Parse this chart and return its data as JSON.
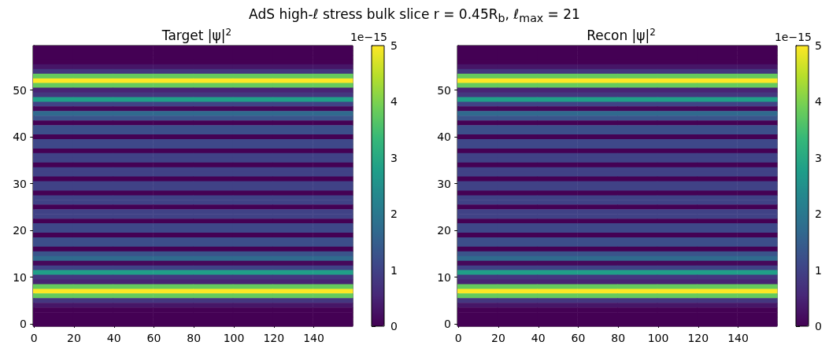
{
  "chart_data": [
    {
      "type": "heatmap",
      "title": "AdS high-ℓ stress bulk slice r = 0.45R$_{b}$, ℓ$_{max}$ = 21",
      "subtitle": "Target |ψ|$^{2}$",
      "clabel": "1e−15",
      "xlim": [
        -0.5,
        159.5
      ],
      "xticks": [
        0,
        20,
        40,
        60,
        80,
        100,
        120,
        140
      ],
      "ylim": [
        -0.5,
        59.5
      ],
      "yticks": [
        0,
        10,
        20,
        30,
        40,
        50
      ],
      "clim": [
        0,
        5
      ],
      "cticks": [
        0,
        1,
        2,
        3,
        4,
        5
      ],
      "cells": [
        [
          0,
          0,
          0,
          0,
          0,
          0,
          0,
          0
        ],
        [
          0,
          0,
          0,
          0,
          0,
          0,
          0,
          0
        ],
        [
          0,
          0,
          0,
          0,
          0,
          0,
          0,
          0
        ],
        [
          0,
          0,
          0,
          0,
          0,
          0,
          0,
          0
        ],
        [
          0.3,
          0.3,
          0.3,
          0.3,
          0.3,
          0.3,
          0.3,
          0.3
        ],
        [
          0.8,
          0.8,
          0.8,
          0.8,
          0.8,
          0.8,
          0.8,
          0.8
        ],
        [
          3.8,
          3.8,
          3.8,
          3.8,
          3.8,
          3.8,
          3.8,
          3.8
        ],
        [
          5,
          5,
          5,
          5,
          5,
          5,
          5,
          5
        ],
        [
          3.8,
          3.8,
          3.8,
          3.8,
          3.8,
          3.8,
          3.8,
          3.8
        ],
        [
          0.5,
          0.5,
          0.5,
          0.5,
          0.5,
          0.5,
          0.5,
          0.5
        ],
        [
          0.8,
          0.8,
          0.8,
          0.8,
          0.8,
          0.8,
          0.8,
          0.8
        ],
        [
          2.8,
          2.8,
          2.8,
          2.8,
          2.8,
          2.8,
          2.8,
          2.8
        ],
        [
          1,
          1,
          1,
          1,
          1,
          1,
          1,
          1
        ],
        [
          0.1,
          0.1,
          0.1,
          0.1,
          0.1,
          0.1,
          0.1,
          0.1
        ],
        [
          1.7,
          1.7,
          1.7,
          1.7,
          1.7,
          1.7,
          1.7,
          1.7
        ],
        [
          1.3,
          1.3,
          1.3,
          1.3,
          1.3,
          1.3,
          1.3,
          1.3
        ],
        [
          0,
          0,
          0,
          0,
          0,
          0,
          0,
          0
        ],
        [
          1.2,
          1.2,
          1.2,
          1.2,
          1.2,
          1.2,
          1.2,
          1.2
        ],
        [
          1.2,
          1.2,
          1.2,
          1.2,
          1.2,
          1.2,
          1.2,
          1.2
        ],
        [
          0,
          0,
          0,
          0,
          0,
          0,
          0,
          0
        ],
        [
          1.1,
          1.1,
          1.1,
          1.1,
          1.1,
          1.1,
          1.1,
          1.1
        ],
        [
          1.1,
          1.1,
          1.1,
          1.1,
          1.1,
          1.1,
          1.1,
          1.1
        ],
        [
          0,
          0,
          0,
          0,
          0,
          0,
          0,
          0
        ],
        [
          1,
          1,
          1,
          1,
          1,
          1,
          1,
          1
        ],
        [
          1,
          1,
          1,
          1,
          1,
          1,
          1,
          1
        ],
        [
          0,
          0,
          0,
          0,
          0,
          0,
          0,
          0
        ],
        [
          1,
          1,
          1,
          1,
          1,
          1,
          1,
          1
        ],
        [
          1,
          1,
          1,
          1,
          1,
          1,
          1,
          1
        ],
        [
          0,
          0,
          0,
          0,
          0,
          0,
          0,
          0
        ],
        [
          1,
          1,
          1,
          1,
          1,
          1,
          1,
          1
        ],
        [
          1,
          1,
          1,
          1,
          1,
          1,
          1,
          1
        ],
        [
          0,
          0,
          0,
          0,
          0,
          0,
          0,
          0
        ],
        [
          1,
          1,
          1,
          1,
          1,
          1,
          1,
          1
        ],
        [
          1,
          1,
          1,
          1,
          1,
          1,
          1,
          1
        ],
        [
          0,
          0,
          0,
          0,
          0,
          0,
          0,
          0
        ],
        [
          1,
          1,
          1,
          1,
          1,
          1,
          1,
          1
        ],
        [
          1,
          1,
          1,
          1,
          1,
          1,
          1,
          1
        ],
        [
          0,
          0,
          0,
          0,
          0,
          0,
          0,
          0
        ],
        [
          1.1,
          1.1,
          1.1,
          1.1,
          1.1,
          1.1,
          1.1,
          1.1
        ],
        [
          1.1,
          1.1,
          1.1,
          1.1,
          1.1,
          1.1,
          1.1,
          1.1
        ],
        [
          0,
          0,
          0,
          0,
          0,
          0,
          0,
          0
        ],
        [
          1.2,
          1.2,
          1.2,
          1.2,
          1.2,
          1.2,
          1.2,
          1.2
        ],
        [
          1.2,
          1.2,
          1.2,
          1.2,
          1.2,
          1.2,
          1.2,
          1.2
        ],
        [
          0,
          0,
          0,
          0,
          0,
          0,
          0,
          0
        ],
        [
          1.3,
          1.3,
          1.3,
          1.3,
          1.3,
          1.3,
          1.3,
          1.3
        ],
        [
          1.7,
          1.7,
          1.7,
          1.7,
          1.7,
          1.7,
          1.7,
          1.7
        ],
        [
          0.1,
          0.1,
          0.1,
          0.1,
          0.1,
          0.1,
          0.1,
          0.1
        ],
        [
          1,
          1,
          1,
          1,
          1,
          1,
          1,
          1
        ],
        [
          2.8,
          2.8,
          2.8,
          2.8,
          2.8,
          2.8,
          2.8,
          2.8
        ],
        [
          0.8,
          0.8,
          0.8,
          0.8,
          0.8,
          0.8,
          0.8,
          0.8
        ],
        [
          0.5,
          0.5,
          0.5,
          0.5,
          0.5,
          0.5,
          0.5,
          0.5
        ],
        [
          3.8,
          3.8,
          3.8,
          3.8,
          3.8,
          3.8,
          3.8,
          3.8
        ],
        [
          5,
          5,
          5,
          5,
          5,
          5,
          5,
          5
        ],
        [
          3.8,
          3.8,
          3.8,
          3.8,
          3.8,
          3.8,
          3.8,
          3.8
        ],
        [
          0.8,
          0.8,
          0.8,
          0.8,
          0.8,
          0.8,
          0.8,
          0.8
        ],
        [
          0.3,
          0.3,
          0.3,
          0.3,
          0.3,
          0.3,
          0.3,
          0.3
        ],
        [
          0,
          0,
          0,
          0,
          0,
          0,
          0,
          0
        ],
        [
          0,
          0,
          0,
          0,
          0,
          0,
          0,
          0
        ],
        [
          0,
          0,
          0,
          0,
          0,
          0,
          0,
          0
        ],
        [
          0,
          0,
          0,
          0,
          0,
          0,
          0,
          0
        ]
      ]
    },
    {
      "type": "heatmap",
      "subtitle": "Recon |ψ|$^{2}$",
      "clabel": "1e−15",
      "xlim": [
        -0.5,
        159.5
      ],
      "xticks": [
        0,
        20,
        40,
        60,
        80,
        100,
        120,
        140
      ],
      "ylim": [
        -0.5,
        59.5
      ],
      "yticks": [
        0,
        10,
        20,
        30,
        40,
        50
      ],
      "clim": [
        0,
        5
      ],
      "cticks": [
        0,
        1,
        2,
        3,
        4,
        5
      ],
      "cells": [
        [
          0,
          0,
          0,
          0,
          0,
          0,
          0,
          0
        ],
        [
          0,
          0,
          0,
          0,
          0,
          0,
          0,
          0
        ],
        [
          0,
          0,
          0,
          0,
          0,
          0,
          0,
          0
        ],
        [
          0,
          0,
          0,
          0,
          0,
          0,
          0,
          0
        ],
        [
          0.3,
          0.3,
          0.3,
          0.3,
          0.3,
          0.3,
          0.3,
          0.3
        ],
        [
          0.8,
          0.8,
          0.8,
          0.8,
          0.8,
          0.8,
          0.8,
          0.8
        ],
        [
          3.8,
          3.8,
          3.8,
          3.8,
          3.8,
          3.8,
          3.8,
          3.8
        ],
        [
          5,
          5,
          5,
          5,
          5,
          5,
          5,
          5
        ],
        [
          3.8,
          3.8,
          3.8,
          3.8,
          3.8,
          3.8,
          3.8,
          3.8
        ],
        [
          0.5,
          0.5,
          0.5,
          0.5,
          0.5,
          0.5,
          0.5,
          0.5
        ],
        [
          0.8,
          0.8,
          0.8,
          0.8,
          0.8,
          0.8,
          0.8,
          0.8
        ],
        [
          2.8,
          2.8,
          2.8,
          2.8,
          2.8,
          2.8,
          2.8,
          2.8
        ],
        [
          1,
          1,
          1,
          1,
          1,
          1,
          1,
          1
        ],
        [
          0.1,
          0.1,
          0.1,
          0.1,
          0.1,
          0.1,
          0.1,
          0.1
        ],
        [
          1.7,
          1.7,
          1.7,
          1.7,
          1.7,
          1.7,
          1.7,
          1.7
        ],
        [
          1.3,
          1.3,
          1.3,
          1.3,
          1.3,
          1.3,
          1.3,
          1.3
        ],
        [
          0,
          0,
          0,
          0,
          0,
          0,
          0,
          0
        ],
        [
          1.2,
          1.2,
          1.2,
          1.2,
          1.2,
          1.2,
          1.2,
          1.2
        ],
        [
          1.2,
          1.2,
          1.2,
          1.2,
          1.2,
          1.2,
          1.2,
          1.2
        ],
        [
          0,
          0,
          0,
          0,
          0,
          0,
          0,
          0
        ],
        [
          1.1,
          1.1,
          1.1,
          1.1,
          1.1,
          1.1,
          1.1,
          1.1
        ],
        [
          1.1,
          1.1,
          1.1,
          1.1,
          1.1,
          1.1,
          1.1,
          1.1
        ],
        [
          0,
          0,
          0,
          0,
          0,
          0,
          0,
          0
        ],
        [
          1,
          1,
          1,
          1,
          1,
          1,
          1,
          1
        ],
        [
          1,
          1,
          1,
          1,
          1,
          1,
          1,
          1
        ],
        [
          0,
          0,
          0,
          0,
          0,
          0,
          0,
          0
        ],
        [
          1,
          1,
          1,
          1,
          1,
          1,
          1,
          1
        ],
        [
          1,
          1,
          1,
          1,
          1,
          1,
          1,
          1
        ],
        [
          0,
          0,
          0,
          0,
          0,
          0,
          0,
          0
        ],
        [
          1,
          1,
          1,
          1,
          1,
          1,
          1,
          1
        ],
        [
          1,
          1,
          1,
          1,
          1,
          1,
          1,
          1
        ],
        [
          0,
          0,
          0,
          0,
          0,
          0,
          0,
          0
        ],
        [
          1,
          1,
          1,
          1,
          1,
          1,
          1,
          1
        ],
        [
          1,
          1,
          1,
          1,
          1,
          1,
          1,
          1
        ],
        [
          0,
          0,
          0,
          0,
          0,
          0,
          0,
          0
        ],
        [
          1,
          1,
          1,
          1,
          1,
          1,
          1,
          1
        ],
        [
          1,
          1,
          1,
          1,
          1,
          1,
          1,
          1
        ],
        [
          0,
          0,
          0,
          0,
          0,
          0,
          0,
          0
        ],
        [
          1.1,
          1.1,
          1.1,
          1.1,
          1.1,
          1.1,
          1.1,
          1.1
        ],
        [
          1.1,
          1.1,
          1.1,
          1.1,
          1.1,
          1.1,
          1.1,
          1.1
        ],
        [
          0,
          0,
          0,
          0,
          0,
          0,
          0,
          0
        ],
        [
          1.2,
          1.2,
          1.2,
          1.2,
          1.2,
          1.2,
          1.2,
          1.2
        ],
        [
          1.2,
          1.2,
          1.2,
          1.2,
          1.2,
          1.2,
          1.2,
          1.2
        ],
        [
          0,
          0,
          0,
          0,
          0,
          0,
          0,
          0
        ],
        [
          1.3,
          1.3,
          1.3,
          1.3,
          1.3,
          1.3,
          1.3,
          1.3
        ],
        [
          1.7,
          1.7,
          1.7,
          1.7,
          1.7,
          1.7,
          1.7,
          1.7
        ],
        [
          0.1,
          0.1,
          0.1,
          0.1,
          0.1,
          0.1,
          0.1,
          0.1
        ],
        [
          1,
          1,
          1,
          1,
          1,
          1,
          1,
          1
        ],
        [
          2.8,
          2.8,
          2.8,
          2.8,
          2.8,
          2.8,
          2.8,
          2.8
        ],
        [
          0.8,
          0.8,
          0.8,
          0.8,
          0.8,
          0.8,
          0.8,
          0.8
        ],
        [
          0.5,
          0.5,
          0.5,
          0.5,
          0.5,
          0.5,
          0.5,
          0.5
        ],
        [
          3.8,
          3.8,
          3.8,
          3.8,
          3.8,
          3.8,
          3.8,
          3.8
        ],
        [
          5,
          5,
          5,
          5,
          5,
          5,
          5,
          5
        ],
        [
          3.8,
          3.8,
          3.8,
          3.8,
          3.8,
          3.8,
          3.8,
          3.8
        ],
        [
          0.8,
          0.8,
          0.8,
          0.8,
          0.8,
          0.8,
          0.8,
          0.8
        ],
        [
          0.3,
          0.3,
          0.3,
          0.3,
          0.3,
          0.3,
          0.3,
          0.3
        ],
        [
          0,
          0,
          0,
          0,
          0,
          0,
          0,
          0
        ],
        [
          0,
          0,
          0,
          0,
          0,
          0,
          0,
          0
        ],
        [
          0,
          0,
          0,
          0,
          0,
          0,
          0,
          0
        ],
        [
          0,
          0,
          0,
          0,
          0,
          0,
          0,
          0
        ]
      ]
    }
  ]
}
